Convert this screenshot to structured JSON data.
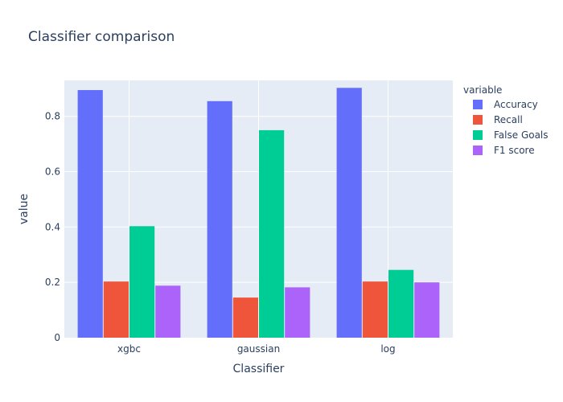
{
  "chart_data": {
    "type": "bar",
    "title": "Classifier comparison",
    "xlabel": "Classifier",
    "ylabel": "value",
    "categories": [
      "xgbc",
      "gaussian",
      "log"
    ],
    "series": [
      {
        "name": "Accuracy",
        "values": [
          0.895,
          0.855,
          0.903
        ]
      },
      {
        "name": "Recall",
        "values": [
          0.203,
          0.145,
          0.203
        ]
      },
      {
        "name": "False Goals",
        "values": [
          0.403,
          0.75,
          0.245
        ]
      },
      {
        "name": "F1 score",
        "values": [
          0.188,
          0.182,
          0.2
        ]
      }
    ],
    "ylim": [
      0,
      0.93
    ],
    "yticks": [
      0,
      0.2,
      0.4,
      0.6,
      0.8
    ],
    "ytick_labels": [
      "0",
      "0.2",
      "0.4",
      "0.6",
      "0.8"
    ],
    "legend_title": "variable",
    "legend_placement": "right",
    "grid": true,
    "colors": {
      "series": [
        "#636efa",
        "#ef553b",
        "#00cc96",
        "#ab63fa"
      ],
      "plot_background": "#e5ecf6",
      "gridline": "#ffffff",
      "text": "#2a3f5f"
    }
  }
}
